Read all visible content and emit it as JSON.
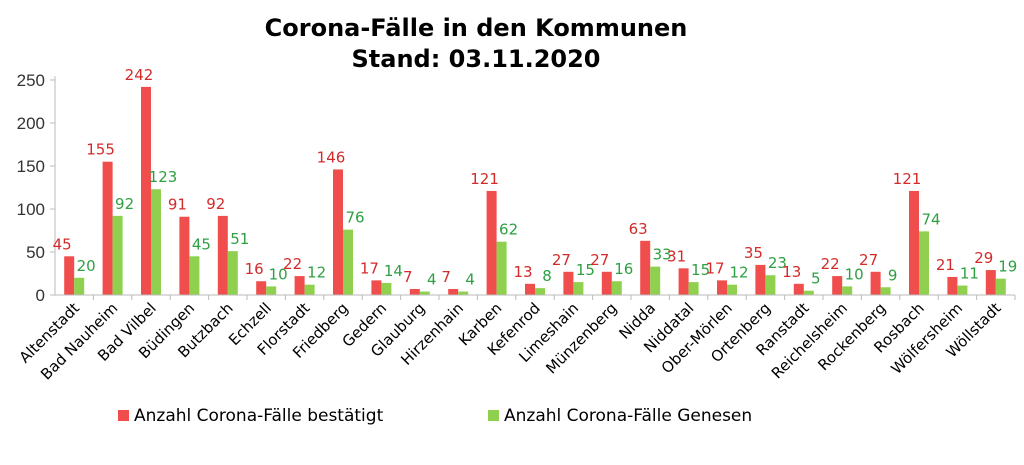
{
  "chart_data": {
    "type": "bar",
    "title": "Corona-Fälle in den Kommunen",
    "subtitle": "Stand: 03.11.2020",
    "xlabel": "",
    "ylabel": "",
    "ylim": [
      0,
      250
    ],
    "yticks": [
      0,
      50,
      100,
      150,
      200,
      250
    ],
    "grid": false,
    "legend_position": "bottom",
    "categories": [
      "Altenstadt",
      "Bad Nauheim",
      "Bad Vilbel",
      "Büdingen",
      "Butzbach",
      "Echzell",
      "Florstadt",
      "Friedberg",
      "Gedern",
      "Glauburg",
      "Hirzenhain",
      "Karben",
      "Kefenrod",
      "Limeshain",
      "Münzenberg",
      "Nidda",
      "Niddatal",
      "Ober-Mörlen",
      "Ortenberg",
      "Ranstadt",
      "Reichelsheim",
      "Rockenberg",
      "Rosbach",
      "Wölfersheim",
      "Wöllstadt"
    ],
    "series": [
      {
        "name": "Anzahl Corona-Fälle bestätigt",
        "color": "#f04d4d",
        "label_color": "#d42a2a",
        "values": [
          45,
          155,
          242,
          91,
          92,
          16,
          22,
          146,
          17,
          7,
          7,
          121,
          13,
          27,
          27,
          63,
          31,
          17,
          35,
          13,
          22,
          27,
          121,
          21,
          29
        ]
      },
      {
        "name": "Anzahl Corona-Fälle Genesen",
        "color": "#8fd14f",
        "label_color": "#2ea043",
        "values": [
          20,
          92,
          123,
          45,
          51,
          10,
          12,
          76,
          14,
          4,
          4,
          62,
          8,
          15,
          16,
          33,
          15,
          12,
          23,
          5,
          10,
          9,
          74,
          11,
          19
        ]
      }
    ]
  }
}
